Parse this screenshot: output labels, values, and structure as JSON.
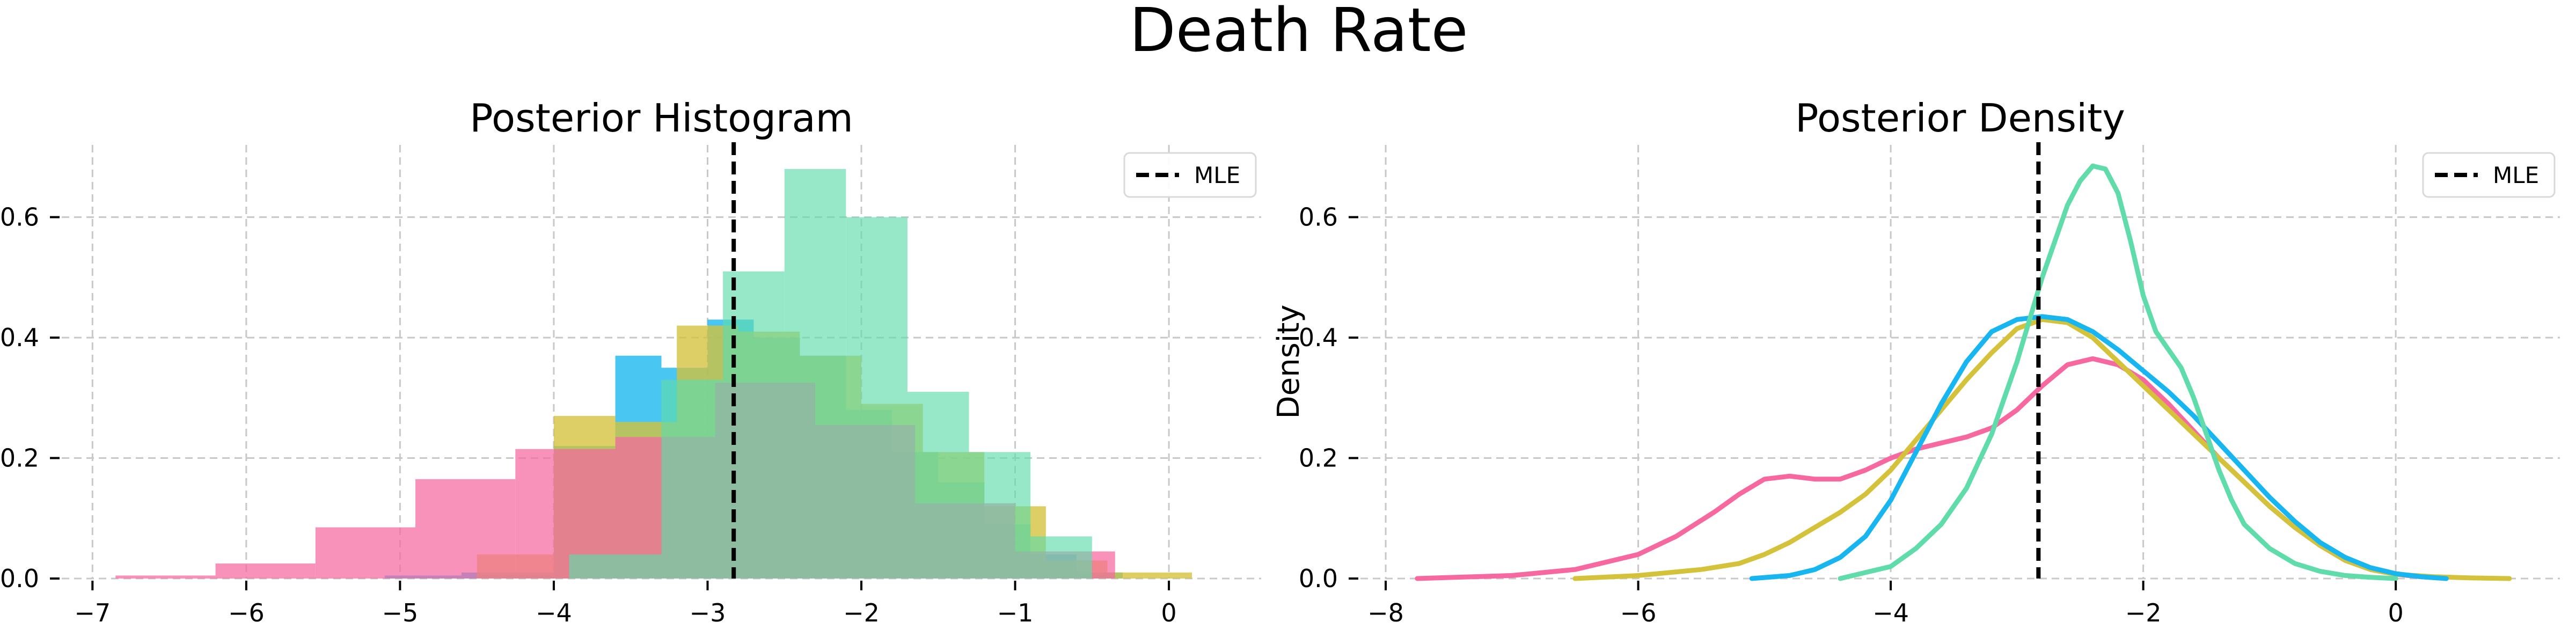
{
  "figure": {
    "suptitle": "Death Rate"
  },
  "palette": {
    "pink": "#f768a1",
    "blue": "#17b6f0",
    "yellow": "#d4c23a",
    "green": "#5fdcaa",
    "mle": "#000000"
  },
  "chart_data": [
    {
      "type": "histogram",
      "title": "Posterior Histogram",
      "xlabel": "",
      "ylabel": "",
      "xlim": [
        -7.2,
        0.6
      ],
      "ylim": [
        0,
        0.72
      ],
      "xticks": [
        -7,
        -6,
        -5,
        -4,
        -3,
        -2,
        -1,
        0
      ],
      "yticks": [
        0.0,
        0.2,
        0.4,
        0.6
      ],
      "xtick_labels": [
        "−7",
        "−6",
        "−5",
        "−4",
        "−3",
        "−2",
        "−1",
        "0"
      ],
      "ytick_labels": [
        "0.0",
        "0.2",
        "0.4",
        "0.6"
      ],
      "grid": true,
      "legend": {
        "position": "top-right",
        "entries": [
          "MLE"
        ]
      },
      "mle_x": -2.83,
      "series": [
        {
          "color": "#17b6f0",
          "opacity": 0.78,
          "edges": [
            -5.1,
            -4.6,
            -4.0,
            -3.6,
            -3.3,
            -3.0,
            -2.7,
            -2.4,
            -2.1,
            -1.8,
            -1.5,
            -1.2,
            -0.9,
            -0.6,
            -0.3
          ],
          "heights": [
            0.005,
            0.01,
            0.22,
            0.37,
            0.35,
            0.43,
            0.4,
            0.37,
            0.28,
            0.21,
            0.16,
            0.09,
            0.04,
            0.01
          ]
        },
        {
          "color": "#d4c23a",
          "opacity": 0.78,
          "edges": [
            -4.5,
            -4.0,
            -3.6,
            -3.2,
            -2.8,
            -2.4,
            -2.0,
            -1.6,
            -1.2,
            -0.8,
            -0.4,
            0.15
          ],
          "heights": [
            0.04,
            0.27,
            0.26,
            0.42,
            0.41,
            0.37,
            0.29,
            0.21,
            0.12,
            0.03,
            0.01
          ]
        },
        {
          "color": "#f768a1",
          "opacity": 0.72,
          "edges": [
            -6.85,
            -6.2,
            -5.55,
            -4.9,
            -4.25,
            -3.6,
            -2.95,
            -2.3,
            -1.65,
            -1.0,
            -0.35
          ],
          "heights": [
            0.005,
            0.025,
            0.085,
            0.165,
            0.215,
            0.235,
            0.325,
            0.255,
            0.125,
            0.045
          ]
        },
        {
          "color": "#5fdcaa",
          "opacity": 0.65,
          "edges": [
            -3.9,
            -3.3,
            -2.9,
            -2.5,
            -2.1,
            -1.7,
            -1.3,
            -0.9,
            -0.5
          ],
          "heights": [
            0.04,
            0.33,
            0.51,
            0.68,
            0.6,
            0.31,
            0.21,
            0.07
          ]
        }
      ]
    },
    {
      "type": "line",
      "title": "Posterior Density",
      "xlabel": "",
      "ylabel": "Density",
      "xlim": [
        -8.2,
        1.3
      ],
      "ylim": [
        0,
        0.72
      ],
      "xticks": [
        -8,
        -6,
        -4,
        -2,
        0
      ],
      "yticks": [
        0.0,
        0.2,
        0.4,
        0.6
      ],
      "xtick_labels": [
        "−8",
        "−6",
        "−4",
        "−2",
        "0"
      ],
      "ytick_labels": [
        "0.0",
        "0.2",
        "0.4",
        "0.6"
      ],
      "grid": true,
      "legend": {
        "position": "top-right",
        "entries": [
          "MLE"
        ]
      },
      "mle_x": -2.83,
      "series": [
        {
          "color": "#f768a1",
          "x": [
            -7.75,
            -7.0,
            -6.5,
            -6.0,
            -5.7,
            -5.4,
            -5.2,
            -5.0,
            -4.8,
            -4.6,
            -4.4,
            -4.2,
            -4.0,
            -3.8,
            -3.6,
            -3.4,
            -3.2,
            -3.0,
            -2.8,
            -2.6,
            -2.4,
            -2.2,
            -2.0,
            -1.8,
            -1.6,
            -1.4,
            -1.2,
            -1.0,
            -0.8,
            -0.6,
            -0.4,
            -0.2,
            0.0,
            0.2,
            0.4
          ],
          "y": [
            0.0,
            0.005,
            0.015,
            0.04,
            0.07,
            0.11,
            0.14,
            0.165,
            0.17,
            0.165,
            0.165,
            0.18,
            0.2,
            0.215,
            0.225,
            0.235,
            0.25,
            0.28,
            0.32,
            0.355,
            0.365,
            0.355,
            0.33,
            0.29,
            0.245,
            0.2,
            0.16,
            0.12,
            0.085,
            0.055,
            0.03,
            0.015,
            0.007,
            0.003,
            0.0
          ]
        },
        {
          "color": "#d4c23a",
          "x": [
            -6.5,
            -6.0,
            -5.5,
            -5.2,
            -5.0,
            -4.8,
            -4.6,
            -4.4,
            -4.2,
            -4.0,
            -3.8,
            -3.6,
            -3.4,
            -3.2,
            -3.0,
            -2.8,
            -2.6,
            -2.4,
            -2.2,
            -2.0,
            -1.8,
            -1.6,
            -1.4,
            -1.2,
            -1.0,
            -0.8,
            -0.6,
            -0.4,
            -0.2,
            0.0,
            0.3,
            0.6,
            0.9
          ],
          "y": [
            0.0,
            0.005,
            0.015,
            0.025,
            0.04,
            0.06,
            0.085,
            0.11,
            0.14,
            0.18,
            0.23,
            0.28,
            0.33,
            0.375,
            0.415,
            0.43,
            0.425,
            0.4,
            0.36,
            0.32,
            0.28,
            0.24,
            0.2,
            0.16,
            0.12,
            0.085,
            0.055,
            0.03,
            0.015,
            0.007,
            0.003,
            0.001,
            0.0
          ]
        },
        {
          "color": "#17b6f0",
          "x": [
            -5.1,
            -4.8,
            -4.6,
            -4.4,
            -4.2,
            -4.0,
            -3.8,
            -3.6,
            -3.4,
            -3.2,
            -3.0,
            -2.8,
            -2.6,
            -2.4,
            -2.2,
            -2.0,
            -1.8,
            -1.6,
            -1.4,
            -1.2,
            -1.0,
            -0.8,
            -0.6,
            -0.4,
            -0.2,
            0.0,
            0.2,
            0.4
          ],
          "y": [
            0.0,
            0.005,
            0.015,
            0.035,
            0.07,
            0.13,
            0.21,
            0.29,
            0.36,
            0.41,
            0.43,
            0.435,
            0.43,
            0.41,
            0.38,
            0.345,
            0.31,
            0.27,
            0.225,
            0.18,
            0.135,
            0.095,
            0.06,
            0.035,
            0.018,
            0.008,
            0.003,
            0.0
          ]
        },
        {
          "color": "#5fdcaa",
          "x": [
            -4.4,
            -4.2,
            -4.0,
            -3.8,
            -3.6,
            -3.4,
            -3.2,
            -3.0,
            -2.8,
            -2.6,
            -2.5,
            -2.4,
            -2.3,
            -2.2,
            -2.1,
            -2.0,
            -1.9,
            -1.8,
            -1.7,
            -1.6,
            -1.5,
            -1.4,
            -1.3,
            -1.2,
            -1.0,
            -0.8,
            -0.6,
            -0.4,
            -0.2,
            0.0
          ],
          "y": [
            0.0,
            0.01,
            0.02,
            0.05,
            0.09,
            0.15,
            0.24,
            0.36,
            0.5,
            0.62,
            0.66,
            0.685,
            0.68,
            0.64,
            0.56,
            0.47,
            0.41,
            0.38,
            0.35,
            0.3,
            0.24,
            0.18,
            0.13,
            0.09,
            0.05,
            0.025,
            0.012,
            0.005,
            0.002,
            0.0
          ]
        }
      ]
    }
  ]
}
